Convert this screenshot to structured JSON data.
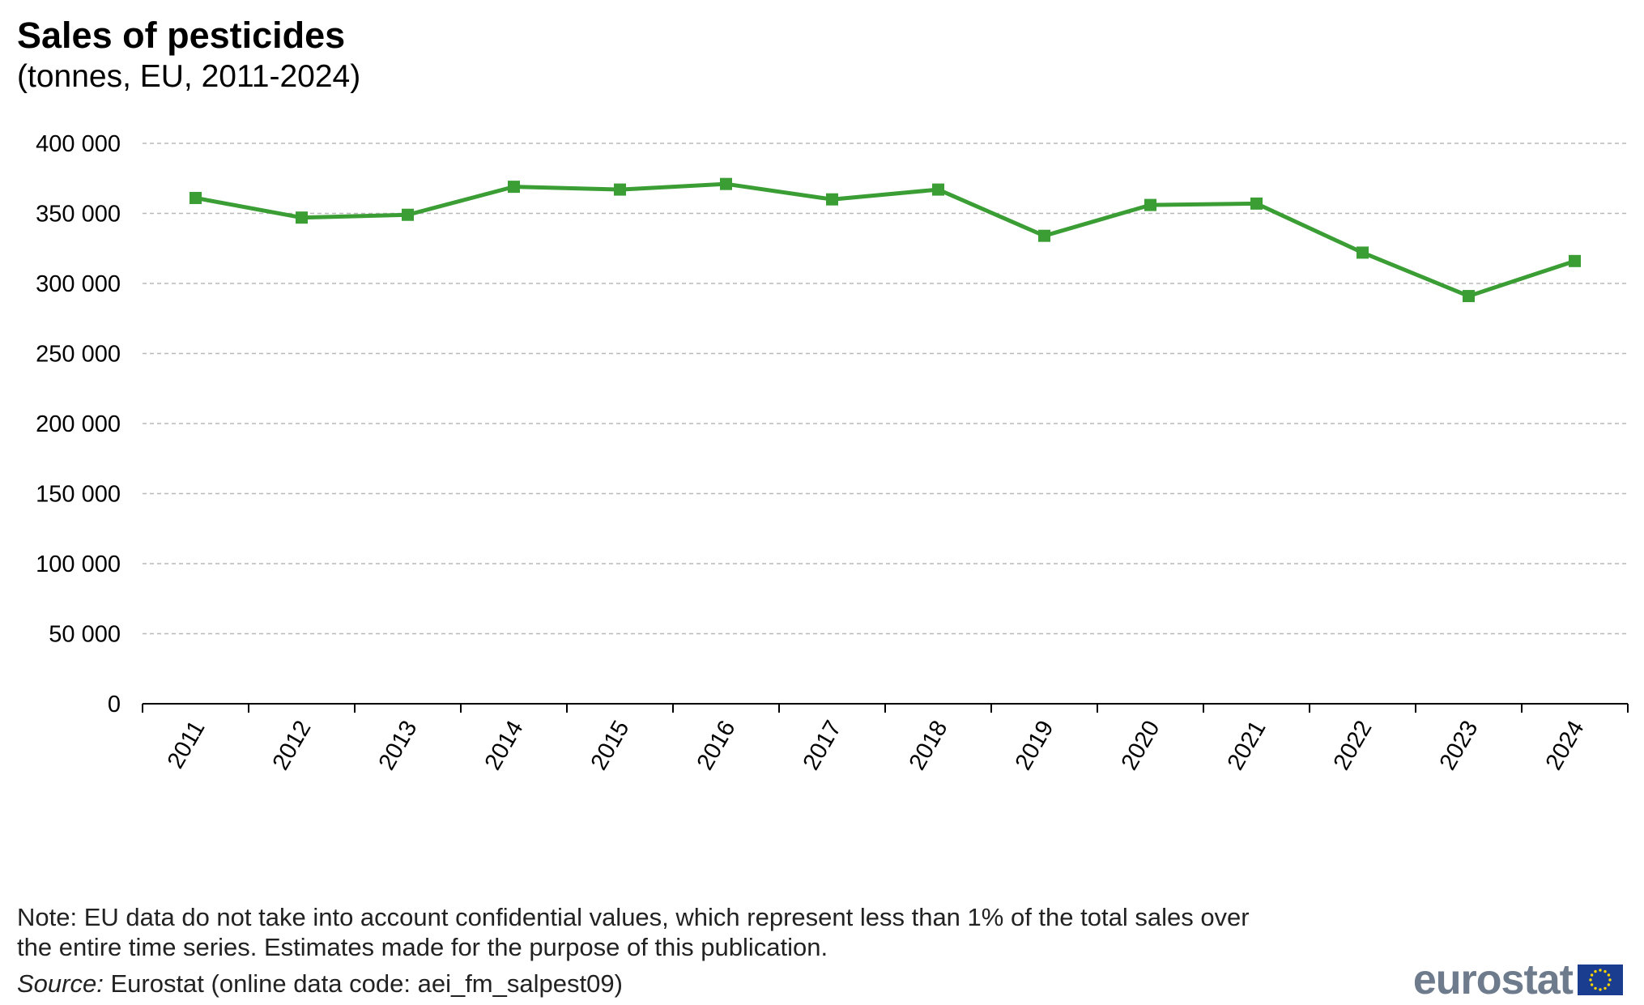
{
  "header": {
    "title": "Sales of pesticides",
    "subtitle": "(tonnes, EU, 2011-2024)"
  },
  "footer": {
    "note": "Note: EU data do not take into account confidential values, which represent less than 1% of the total sales over the entire time series. Estimates made for the purpose of this publication.",
    "source_label": "Source:",
    "source_text": " Eurostat (online data code: aei_fm_salpest09)",
    "logo_text": "eurostat"
  },
  "colors": {
    "line": "#3a9e35",
    "grid": "#b8b8b8",
    "axis": "#000000",
    "flag": "#1a3d8f",
    "flag_stars": "#ffd500"
  },
  "chart_data": {
    "type": "line",
    "title": "Sales of pesticides",
    "subtitle": "(tonnes, EU, 2011-2024)",
    "xlabel": "",
    "ylabel": "",
    "categories": [
      "2011",
      "2012",
      "2013",
      "2014",
      "2015",
      "2016",
      "2017",
      "2018",
      "2019",
      "2020",
      "2021",
      "2022",
      "2023",
      "2024"
    ],
    "series": [
      {
        "values": [
          361000,
          347000,
          349000,
          369000,
          367000,
          371000,
          360000,
          367000,
          334000,
          356000,
          357000,
          322000,
          291000,
          316000
        ]
      }
    ],
    "ylim": [
      0,
      400000
    ],
    "yticks": [
      0,
      50000,
      100000,
      150000,
      200000,
      250000,
      300000,
      350000,
      400000
    ],
    "ytick_labels": [
      "0",
      "50 000",
      "100 000",
      "150 000",
      "200 000",
      "250 000",
      "300 000",
      "350 000",
      "400 000"
    ],
    "grid": true,
    "legend": "none"
  }
}
